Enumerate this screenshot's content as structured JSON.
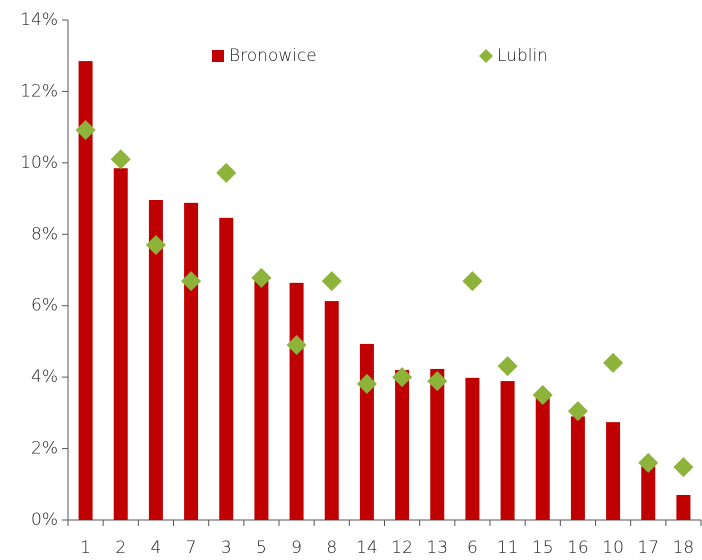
{
  "chart_data": {
    "type": "bar",
    "categories": [
      "1",
      "2",
      "4",
      "7",
      "3",
      "5",
      "9",
      "8",
      "14",
      "12",
      "13",
      "6",
      "11",
      "15",
      "16",
      "10",
      "17",
      "18"
    ],
    "series": [
      {
        "name": "Bronowice",
        "type": "bar",
        "color": "#c00000",
        "values": [
          12.85,
          9.85,
          8.96,
          8.88,
          8.46,
          6.7,
          6.64,
          6.13,
          4.93,
          4.2,
          4.23,
          3.98,
          3.89,
          3.45,
          2.9,
          2.74,
          1.5,
          0.7
        ]
      },
      {
        "name": "Lublin",
        "type": "scatter",
        "color": "#8db33a",
        "values": [
          10.92,
          10.1,
          7.7,
          6.69,
          9.72,
          6.78,
          4.9,
          6.69,
          3.81,
          4.0,
          3.89,
          6.69,
          4.31,
          3.5,
          3.05,
          4.4,
          1.6,
          1.48
        ]
      }
    ],
    "ylim": [
      0,
      14
    ],
    "yticks": [
      {
        "value": 0,
        "label": "0%"
      },
      {
        "value": 2,
        "label": "2%"
      },
      {
        "value": 4,
        "label": "4%"
      },
      {
        "value": 6,
        "label": "6%"
      },
      {
        "value": 8,
        "label": "8%"
      },
      {
        "value": 10,
        "label": "10%"
      },
      {
        "value": 12,
        "label": "12%"
      },
      {
        "value": 14,
        "label": "14%"
      }
    ],
    "grid": false,
    "legend": "top"
  }
}
